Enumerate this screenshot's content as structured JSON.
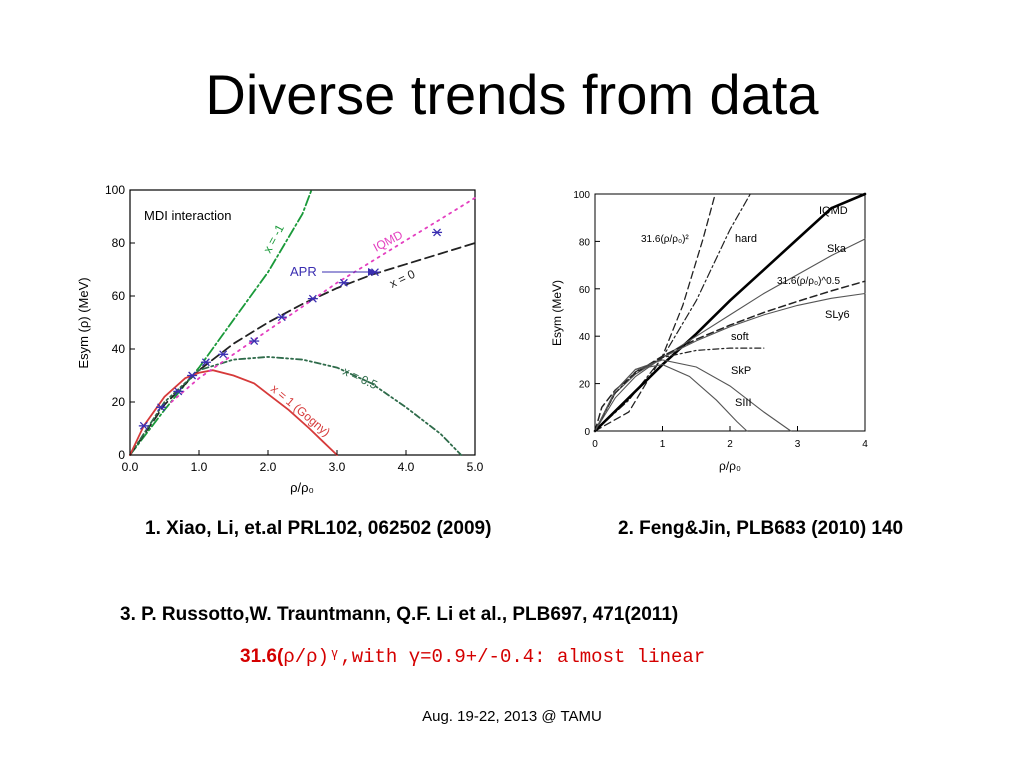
{
  "slide": {
    "title": "Diverse trends from data",
    "ref1": "1. Xiao, Li, et.al PRL102, 062502 (2009)",
    "ref2": "2. Feng&Jin, PLB683 (2010) 140",
    "ref3": "3. P. Russotto,W. Trauntmann, Q.F. Li et al., PLB697, 471(2011)",
    "formula_bold": "31.6(",
    "formula_rest": "ρ/ρ)ᵞ,with γ=0.9+/-0.4: almost linear",
    "footer": "Aug. 19-22, 2013 @ TAMU"
  },
  "chart_data": [
    {
      "type": "line",
      "panel_label": "MDI interaction",
      "xlabel": "ρ/ρ₀",
      "ylabel": "Esym (ρ) (MeV)",
      "xlim": [
        0,
        5
      ],
      "ylim": [
        0,
        100
      ],
      "xticks": [
        "0.0",
        "1.0",
        "2.0",
        "3.0",
        "4.0",
        "5.0"
      ],
      "yticks": [
        "0",
        "20",
        "40",
        "60",
        "80",
        "100"
      ],
      "series": [
        {
          "name": "x = -1",
          "color": "#1a9a3a",
          "dash": "10,3,2,3",
          "x": [
            0,
            0.5,
            1.0,
            1.5,
            2.0,
            2.5,
            2.63
          ],
          "y": [
            0,
            17,
            33,
            51,
            69,
            91,
            100
          ]
        },
        {
          "name": "x = 0",
          "color": "#222222",
          "dash": "9,5",
          "x": [
            0,
            0.5,
            1.0,
            1.5,
            2.0,
            2.5,
            3.0,
            3.5,
            4.0,
            4.5,
            5.0
          ],
          "y": [
            0,
            19,
            32,
            42,
            50,
            57,
            63,
            68,
            72,
            76,
            80
          ]
        },
        {
          "name": "x = 0.5",
          "color": "#2e6b4a",
          "dash": "6,3,2,3,2,3",
          "x": [
            0,
            0.5,
            1.0,
            1.5,
            2.0,
            2.5,
            3.0,
            3.5,
            4.0,
            4.5,
            4.8
          ],
          "y": [
            0,
            20,
            32,
            36,
            37,
            36,
            33,
            27,
            18,
            8,
            0
          ]
        },
        {
          "name": "x = 1 (Gogny)",
          "color": "#d63a3a",
          "dash": "",
          "x": [
            0,
            0.2,
            0.5,
            0.8,
            1.0,
            1.2,
            1.5,
            1.8,
            2.0,
            2.3,
            2.6,
            2.8,
            3.0
          ],
          "y": [
            0,
            11,
            22,
            29,
            31,
            32,
            30,
            27,
            23,
            17,
            10,
            5,
            0
          ]
        },
        {
          "name": "IQMD",
          "color": "#e43fc0",
          "dash": "2,5",
          "x": [
            0.6,
            1.0,
            1.5,
            2.0,
            2.5,
            3.0,
            3.5,
            4.0,
            4.5,
            5.0
          ],
          "y": [
            20,
            29,
            38,
            47,
            56,
            65,
            73,
            81,
            89,
            97
          ]
        }
      ],
      "points": {
        "name": "APR",
        "color": "#3a2eb0",
        "x": [
          0.2,
          0.45,
          0.7,
          0.9,
          1.1,
          1.35,
          1.8,
          2.2,
          2.65,
          3.1,
          3.55,
          4.45
        ],
        "y": [
          11,
          18,
          24,
          30,
          35,
          38,
          43,
          52,
          59,
          65,
          69,
          84
        ]
      },
      "annotations": [
        "x = -1",
        "IQMD",
        "APR",
        "x = 0",
        "x = 0.5",
        "x = 1 (Gogny)"
      ]
    },
    {
      "type": "line",
      "xlabel": "ρ/ρ₀",
      "ylabel": "Esym (MeV)",
      "xlim": [
        0,
        4
      ],
      "ylim": [
        0,
        100
      ],
      "xticks": [
        "0",
        "1",
        "2",
        "3",
        "4"
      ],
      "yticks": [
        "0",
        "20",
        "40",
        "60",
        "80",
        "100"
      ],
      "series": [
        {
          "name": "31.6(ρ/ρ₀)²",
          "color": "#222222",
          "dash": "7,4",
          "width": 1.3,
          "x": [
            0,
            0.5,
            1.0,
            1.3,
            1.6,
            1.78
          ],
          "y": [
            0,
            8,
            31.6,
            53,
            81,
            100
          ]
        },
        {
          "name": "hard",
          "color": "#222222",
          "dash": "8,3,2,3",
          "width": 1.2,
          "x": [
            0,
            0.5,
            1.0,
            1.5,
            2.0,
            2.3
          ],
          "y": [
            0,
            13,
            31,
            55,
            85,
            100
          ]
        },
        {
          "name": "IQMD",
          "color": "#000000",
          "dash": "",
          "width": 2.6,
          "x": [
            0,
            0.5,
            1.0,
            1.5,
            2.0,
            2.5,
            3.0,
            3.5,
            4.0
          ],
          "y": [
            0,
            14,
            28,
            41,
            55,
            68,
            81,
            94,
            100
          ]
        },
        {
          "name": "Ska",
          "color": "#555555",
          "dash": "",
          "width": 1.1,
          "x": [
            0,
            0.3,
            0.6,
            1.0,
            1.5,
            2.0,
            2.5,
            3.0,
            3.5,
            4.0
          ],
          "y": [
            0,
            16,
            24,
            31,
            40,
            49,
            58,
            66,
            74,
            81
          ]
        },
        {
          "name": "31.6(ρ/ρ₀)^0.5",
          "color": "#222222",
          "dash": "7,4",
          "width": 1.5,
          "x": [
            0,
            0.1,
            0.3,
            0.6,
            1.0,
            1.5,
            2.0,
            2.5,
            3.0,
            3.5,
            4.0
          ],
          "y": [
            0,
            10,
            17.3,
            24.5,
            31.6,
            38.7,
            44.7,
            50,
            54.7,
            59.1,
            63.2
          ]
        },
        {
          "name": "SLy6",
          "color": "#555555",
          "dash": "",
          "width": 1.1,
          "x": [
            0,
            0.3,
            0.6,
            1.0,
            1.5,
            2.0,
            2.5,
            3.0,
            3.5,
            4.0
          ],
          "y": [
            0,
            14,
            23,
            31,
            38,
            44,
            49,
            53,
            56,
            58
          ]
        },
        {
          "name": "soft",
          "color": "#222222",
          "dash": "6,3,2,3",
          "width": 1.2,
          "x": [
            0,
            0.3,
            0.6,
            1.0,
            1.5,
            2.0,
            2.5
          ],
          "y": [
            0,
            16,
            25,
            31,
            34,
            35,
            35
          ]
        },
        {
          "name": "SkP",
          "color": "#555555",
          "dash": "",
          "width": 1.1,
          "x": [
            0,
            0.3,
            0.6,
            1.0,
            1.5,
            2.0,
            2.5,
            2.9
          ],
          "y": [
            0,
            17,
            26,
            30,
            27,
            19,
            8,
            0
          ]
        },
        {
          "name": "SIII",
          "color": "#555555",
          "dash": "",
          "width": 1.1,
          "x": [
            0,
            0.3,
            0.6,
            1.0,
            1.4,
            1.8,
            2.1,
            2.25
          ],
          "y": [
            0,
            17,
            26,
            28,
            23,
            13,
            4,
            0
          ]
        }
      ],
      "annotations": [
        "IQMD",
        "31.6(ρ/ρ₀)²",
        "hard",
        "Ska",
        "31.6(ρ/ρ₀)^0.5",
        "SLy6",
        "soft",
        "SkP",
        "SIII"
      ]
    }
  ]
}
